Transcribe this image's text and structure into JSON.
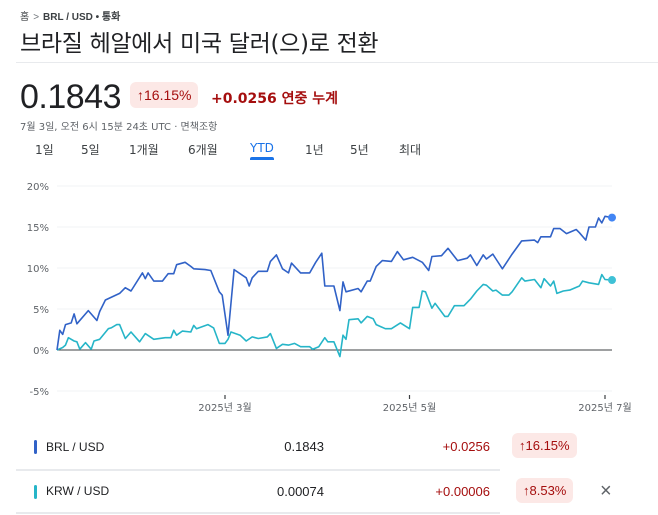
{
  "breadcrumb": {
    "home": "홈",
    "separator": ">",
    "pair": "BRL / USD",
    "category": "• 통화"
  },
  "title": "브라질 헤알에서 미국 달러(으)로 전환",
  "quote": {
    "price": "0.1843",
    "percent_change": "↑16.15%",
    "abs_change": "+0.0256",
    "period_label": "연중 누계",
    "timestamp": "7월 3일, 오전 6시 15분 24초 UTC · 면책조항"
  },
  "tabs": [
    {
      "label": "1일"
    },
    {
      "label": "5일"
    },
    {
      "label": "1개월"
    },
    {
      "label": "6개월"
    },
    {
      "label": "YTD",
      "active": true
    },
    {
      "label": "1년"
    },
    {
      "label": "5년"
    },
    {
      "label": "최대"
    }
  ],
  "colors": {
    "brl": "#3162c7",
    "brl_dot": "#4285f4",
    "krw": "#26b5c8",
    "krw_dot": "#3fc1d6",
    "negative_badge_bg": "#fce8e6",
    "change_text": "#a50e0e",
    "accent": "#1a73e8"
  },
  "chart_data": {
    "type": "line",
    "ylim": [
      -5,
      20
    ],
    "yticks": [
      "20%",
      "15%",
      "10%",
      "5%",
      "0%",
      "-5%"
    ],
    "ytick_values": [
      20,
      15,
      10,
      5,
      0,
      -5
    ],
    "xticks": [
      {
        "date": "2025-03-01",
        "label": "2025년 3월"
      },
      {
        "date": "2025-05-01",
        "label": "2025년 5월"
      },
      {
        "date": "2025-07-01",
        "label": "2025년 7월"
      }
    ],
    "xlim": [
      "2025-01-01",
      "2025-07-03"
    ],
    "grid": true,
    "series": [
      {
        "name": "BRL / USD",
        "color": "#3162c7",
        "points": [
          [
            "2025-01-01",
            0
          ],
          [
            "2025-01-02",
            2.4
          ],
          [
            "2025-01-03",
            1.9
          ],
          [
            "2025-01-04",
            3.1
          ],
          [
            "2025-01-06",
            3.3
          ],
          [
            "2025-01-07",
            4.4
          ],
          [
            "2025-01-08",
            3.2
          ],
          [
            "2025-01-12",
            4.8
          ],
          [
            "2025-01-15",
            3.6
          ],
          [
            "2025-01-16",
            4.7
          ],
          [
            "2025-01-18",
            6.1
          ],
          [
            "2025-01-23",
            6.9
          ],
          [
            "2025-01-25",
            7.6
          ],
          [
            "2025-01-27",
            7.2
          ],
          [
            "2025-01-31",
            9.4
          ],
          [
            "2025-02-01",
            8.7
          ],
          [
            "2025-02-02",
            9.4
          ],
          [
            "2025-02-04",
            8.4
          ],
          [
            "2025-02-07",
            8.4
          ],
          [
            "2025-02-09",
            9.3
          ],
          [
            "2025-02-11",
            9.3
          ],
          [
            "2025-02-12",
            10.4
          ],
          [
            "2025-02-15",
            10.7
          ],
          [
            "2025-02-17",
            10.2
          ],
          [
            "2025-02-18",
            9.9
          ],
          [
            "2025-02-22",
            9.8
          ],
          [
            "2025-02-24",
            9.7
          ],
          [
            "2025-02-27",
            7.1
          ],
          [
            "2025-02-28",
            6.7
          ],
          [
            "2025-03-02",
            1.8
          ],
          [
            "2025-03-04",
            9.8
          ],
          [
            "2025-03-08",
            8.8
          ],
          [
            "2025-03-09",
            7.8
          ],
          [
            "2025-03-10",
            8.8
          ],
          [
            "2025-03-12",
            9.6
          ],
          [
            "2025-03-15",
            9.6
          ],
          [
            "2025-03-16",
            10.8
          ],
          [
            "2025-03-18",
            11.6
          ],
          [
            "2025-03-20",
            9.9
          ],
          [
            "2025-03-22",
            9.4
          ],
          [
            "2025-03-23",
            10.6
          ],
          [
            "2025-03-26",
            9.4
          ],
          [
            "2025-03-29",
            9.4
          ],
          [
            "2025-03-31",
            10.7
          ],
          [
            "2025-04-02",
            11.8
          ],
          [
            "2025-04-03",
            7.8
          ],
          [
            "2025-04-06",
            7.8
          ],
          [
            "2025-04-08",
            4.8
          ],
          [
            "2025-04-09",
            8.3
          ],
          [
            "2025-04-10",
            7.1
          ],
          [
            "2025-04-14",
            7.5
          ],
          [
            "2025-04-15",
            7.1
          ],
          [
            "2025-04-17",
            8.4
          ],
          [
            "2025-04-18",
            8.4
          ],
          [
            "2025-04-20",
            10.2
          ],
          [
            "2025-04-22",
            10.9
          ],
          [
            "2025-04-25",
            10.8
          ],
          [
            "2025-04-27",
            12.0
          ],
          [
            "2025-04-29",
            11.0
          ],
          [
            "2025-05-02",
            11.3
          ],
          [
            "2025-05-05",
            10.7
          ],
          [
            "2025-05-07",
            9.7
          ],
          [
            "2025-05-08",
            11.4
          ],
          [
            "2025-05-11",
            11.5
          ],
          [
            "2025-05-13",
            12.4
          ],
          [
            "2025-05-16",
            10.9
          ],
          [
            "2025-05-19",
            11.2
          ],
          [
            "2025-05-20",
            11.6
          ],
          [
            "2025-05-22",
            10.3
          ],
          [
            "2025-05-24",
            11.6
          ],
          [
            "2025-05-25",
            11.1
          ],
          [
            "2025-05-27",
            11.7
          ],
          [
            "2025-05-28",
            11.1
          ],
          [
            "2025-05-30",
            9.9
          ],
          [
            "2025-06-02",
            11.7
          ],
          [
            "2025-06-05",
            13.3
          ],
          [
            "2025-06-09",
            13.4
          ],
          [
            "2025-06-10",
            13.1
          ],
          [
            "2025-06-11",
            13.8
          ],
          [
            "2025-06-14",
            13.8
          ],
          [
            "2025-06-15",
            14.8
          ],
          [
            "2025-06-17",
            14.8
          ],
          [
            "2025-06-19",
            14.2
          ],
          [
            "2025-06-22",
            14.7
          ],
          [
            "2025-06-23",
            14.3
          ],
          [
            "2025-06-25",
            13.4
          ],
          [
            "2025-06-26",
            15.0
          ],
          [
            "2025-06-28",
            15.0
          ],
          [
            "2025-06-29",
            16.1
          ],
          [
            "2025-06-30",
            15.5
          ],
          [
            "2025-07-01",
            16.3
          ],
          [
            "2025-07-03",
            16.15
          ]
        ]
      },
      {
        "name": "KRW / USD",
        "color": "#26b5c8",
        "points": [
          [
            "2025-01-01",
            0
          ],
          [
            "2025-01-03",
            0.3
          ],
          [
            "2025-01-04",
            0.6
          ],
          [
            "2025-01-05",
            1.5
          ],
          [
            "2025-01-07",
            1.1
          ],
          [
            "2025-01-08",
            1.0
          ],
          [
            "2025-01-09",
            0.1
          ],
          [
            "2025-01-11",
            0.9
          ],
          [
            "2025-01-13",
            0.1
          ],
          [
            "2025-01-14",
            1.1
          ],
          [
            "2025-01-16",
            1.3
          ],
          [
            "2025-01-19",
            2.6
          ],
          [
            "2025-01-20",
            2.7
          ],
          [
            "2025-01-22",
            3.1
          ],
          [
            "2025-01-23",
            3.1
          ],
          [
            "2025-01-25",
            1.4
          ],
          [
            "2025-01-27",
            2.2
          ],
          [
            "2025-01-30",
            1.0
          ],
          [
            "2025-02-01",
            2.0
          ],
          [
            "2025-02-04",
            1.3
          ],
          [
            "2025-02-08",
            1.5
          ],
          [
            "2025-02-10",
            1.5
          ],
          [
            "2025-02-11",
            2.4
          ],
          [
            "2025-02-12",
            1.8
          ],
          [
            "2025-02-14",
            2.3
          ],
          [
            "2025-02-17",
            2.2
          ],
          [
            "2025-02-18",
            3.0
          ],
          [
            "2025-02-19",
            2.6
          ],
          [
            "2025-02-23",
            3.1
          ],
          [
            "2025-02-25",
            2.7
          ],
          [
            "2025-02-27",
            0.8
          ],
          [
            "2025-03-01",
            0.8
          ],
          [
            "2025-03-02",
            1.3
          ],
          [
            "2025-03-03",
            2.2
          ],
          [
            "2025-03-06",
            1.8
          ],
          [
            "2025-03-08",
            1.1
          ],
          [
            "2025-03-10",
            1.6
          ],
          [
            "2025-03-12",
            1.4
          ],
          [
            "2025-03-15",
            1.6
          ],
          [
            "2025-03-16",
            2.0
          ],
          [
            "2025-03-18",
            0.2
          ],
          [
            "2025-03-20",
            0.7
          ],
          [
            "2025-03-22",
            0.6
          ],
          [
            "2025-03-24",
            0.8
          ],
          [
            "2025-03-26",
            0.4
          ],
          [
            "2025-03-29",
            0.4
          ],
          [
            "2025-03-30",
            0.1
          ],
          [
            "2025-04-01",
            0.4
          ],
          [
            "2025-04-03",
            1.5
          ],
          [
            "2025-04-04",
            1.0
          ],
          [
            "2025-04-06",
            1.0
          ],
          [
            "2025-04-08",
            -0.8
          ],
          [
            "2025-04-09",
            1.8
          ],
          [
            "2025-04-10",
            1.3
          ],
          [
            "2025-04-11",
            3.7
          ],
          [
            "2025-04-14",
            3.8
          ],
          [
            "2025-04-15",
            3.3
          ],
          [
            "2025-04-17",
            4.1
          ],
          [
            "2025-04-19",
            3.8
          ],
          [
            "2025-04-20",
            3.1
          ],
          [
            "2025-04-23",
            2.6
          ],
          [
            "2025-04-25",
            2.6
          ],
          [
            "2025-04-28",
            3.3
          ],
          [
            "2025-05-01",
            2.6
          ],
          [
            "2025-05-02",
            5.2
          ],
          [
            "2025-05-04",
            5.2
          ],
          [
            "2025-05-05",
            7.2
          ],
          [
            "2025-05-06",
            7.1
          ],
          [
            "2025-05-08",
            5.1
          ],
          [
            "2025-05-09",
            5.7
          ],
          [
            "2025-05-12",
            4.1
          ],
          [
            "2025-05-13",
            4.1
          ],
          [
            "2025-05-15",
            5.4
          ],
          [
            "2025-05-18",
            5.4
          ],
          [
            "2025-05-20",
            6.2
          ],
          [
            "2025-05-22",
            7.2
          ],
          [
            "2025-05-24",
            8.0
          ],
          [
            "2025-05-25",
            7.9
          ],
          [
            "2025-05-27",
            7.2
          ],
          [
            "2025-05-28",
            7.3
          ],
          [
            "2025-05-30",
            6.7
          ],
          [
            "2025-06-01",
            6.7
          ],
          [
            "2025-06-02",
            7.1
          ],
          [
            "2025-06-05",
            8.8
          ],
          [
            "2025-06-06",
            8.4
          ],
          [
            "2025-06-09",
            8.6
          ],
          [
            "2025-06-11",
            7.6
          ],
          [
            "2025-06-12",
            8.7
          ],
          [
            "2025-06-14",
            7.8
          ],
          [
            "2025-06-15",
            8.4
          ],
          [
            "2025-06-16",
            6.9
          ],
          [
            "2025-06-18",
            7.2
          ],
          [
            "2025-06-20",
            7.3
          ],
          [
            "2025-06-23",
            7.8
          ],
          [
            "2025-06-24",
            8.4
          ],
          [
            "2025-06-26",
            8.2
          ],
          [
            "2025-06-29",
            8.0
          ],
          [
            "2025-06-30",
            9.2
          ],
          [
            "2025-07-01",
            8.6
          ],
          [
            "2025-07-03",
            8.53
          ]
        ]
      }
    ]
  },
  "comparison": [
    {
      "name": "BRL / USD",
      "value": "0.1843",
      "change": "+0.0256",
      "percent": "↑16.15%",
      "removable": false
    },
    {
      "name": "KRW / USD",
      "value": "0.00074",
      "change": "+0.00006",
      "percent": "↑8.53%",
      "removable": true,
      "remove_icon": "×"
    }
  ]
}
